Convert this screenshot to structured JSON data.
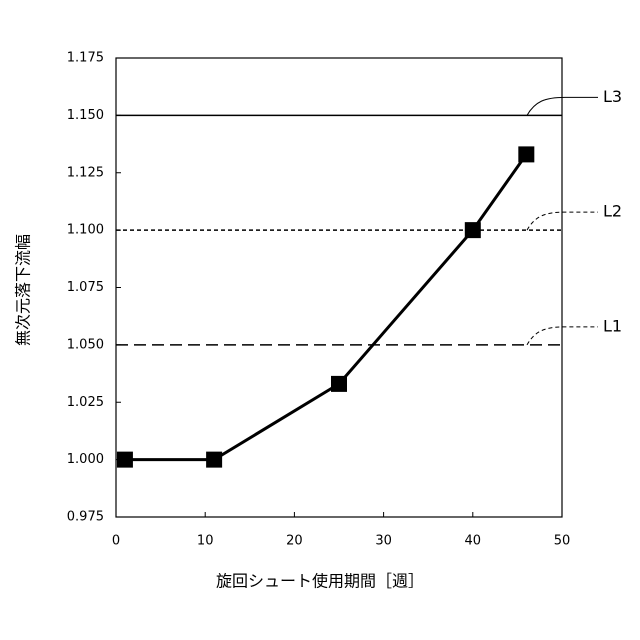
{
  "chart_data": {
    "type": "line",
    "x_label": "旋回シュート使用期間［週］",
    "y_label": "無次元落下流幅",
    "x": [
      1,
      11,
      25,
      40,
      46
    ],
    "series": [
      {
        "values": [
          1.0,
          1.0,
          1.033,
          1.1,
          1.133
        ],
        "color": "#000000"
      }
    ],
    "xlim": [
      0,
      50
    ],
    "xticks": [
      0,
      10,
      20,
      30,
      40,
      50
    ],
    "ylim": [
      0.975,
      1.175
    ],
    "yticks": [
      {
        "value": 0.975,
        "label": "0.975"
      },
      {
        "value": 1.0,
        "label": "1.000"
      },
      {
        "value": 1.025,
        "label": "1.025"
      },
      {
        "value": 1.05,
        "label": "1.050"
      },
      {
        "value": 1.075,
        "label": "1.075"
      },
      {
        "value": 1.1,
        "label": "1.100"
      },
      {
        "value": 1.125,
        "label": "1.125"
      },
      {
        "value": 1.15,
        "label": "1.150"
      },
      {
        "value": 1.175,
        "label": "1.175"
      }
    ],
    "reference_lines": [
      {
        "label": "L1",
        "value": 1.05,
        "style": "dashed"
      },
      {
        "label": "L2",
        "value": 1.1,
        "style": "dotted"
      },
      {
        "label": "L3",
        "value": 1.15,
        "style": "solid"
      }
    ]
  }
}
